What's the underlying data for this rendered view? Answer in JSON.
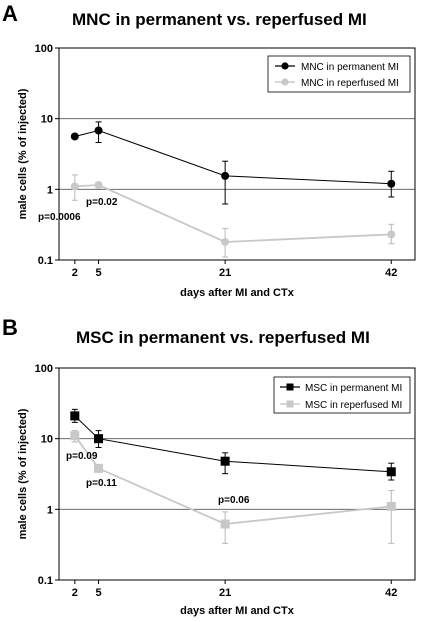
{
  "chart_data": [
    {
      "type": "line",
      "panel": "A",
      "title": "MNC in permanent vs. reperfused MI",
      "xlabel": "days after MI and CTx",
      "ylabel": "male cells (% of injected)",
      "yscale": "log",
      "ylim": [
        0.1,
        100
      ],
      "xlim": [
        0,
        45
      ],
      "x": [
        2,
        5,
        21,
        42
      ],
      "x_tick_labels": [
        "2",
        "5",
        "21",
        "42"
      ],
      "y_tick_labels": [
        "0.1",
        "1",
        "10",
        "100"
      ],
      "grid": "horizontal",
      "legend": "top-right",
      "marker": "circle",
      "series": [
        {
          "name": "MNC in permanent MI",
          "color": "#000000",
          "values": [
            5.6,
            6.8,
            1.55,
            1.2
          ],
          "err_low": [
            5.2,
            4.6,
            0.62,
            0.78
          ],
          "err_high": [
            6.0,
            9.0,
            2.5,
            1.8
          ]
        },
        {
          "name": "MNC in reperfused MI",
          "color": "#c8c8c8",
          "values": [
            1.1,
            1.15,
            0.18,
            0.23
          ],
          "err_low": [
            0.7,
            1.05,
            0.11,
            0.17
          ],
          "err_high": [
            1.6,
            1.25,
            0.28,
            0.32
          ]
        }
      ],
      "annotations": [
        "p=0.02",
        "p=0.0006"
      ]
    },
    {
      "type": "line",
      "panel": "B",
      "title": "MSC in permanent vs. reperfused MI",
      "xlabel": "days after MI and CTx",
      "ylabel": "male cells (% of injected)",
      "yscale": "log",
      "ylim": [
        0.1,
        100
      ],
      "xlim": [
        0,
        45
      ],
      "x": [
        2,
        5,
        21,
        42
      ],
      "x_tick_labels": [
        "2",
        "5",
        "21",
        "42"
      ],
      "y_tick_labels": [
        "0.1",
        "1",
        "10",
        "100"
      ],
      "grid": "horizontal",
      "legend": "top-right",
      "marker": "square",
      "series": [
        {
          "name": "MSC in permanent MI",
          "color": "#000000",
          "values": [
            21,
            10,
            4.8,
            3.4
          ],
          "err_low": [
            17,
            7.5,
            3.2,
            2.6
          ],
          "err_high": [
            26,
            13,
            6.3,
            4.5
          ]
        },
        {
          "name": "MSC in reperfused MI",
          "color": "#c8c8c8",
          "values": [
            11,
            3.8,
            0.62,
            1.1
          ],
          "err_low": [
            9,
            3.5,
            0.33,
            0.33
          ],
          "err_high": [
            13,
            4.1,
            0.92,
            1.85
          ]
        }
      ],
      "annotations": [
        "p=0.09",
        "p=0.11",
        "p=0.06"
      ]
    }
  ]
}
